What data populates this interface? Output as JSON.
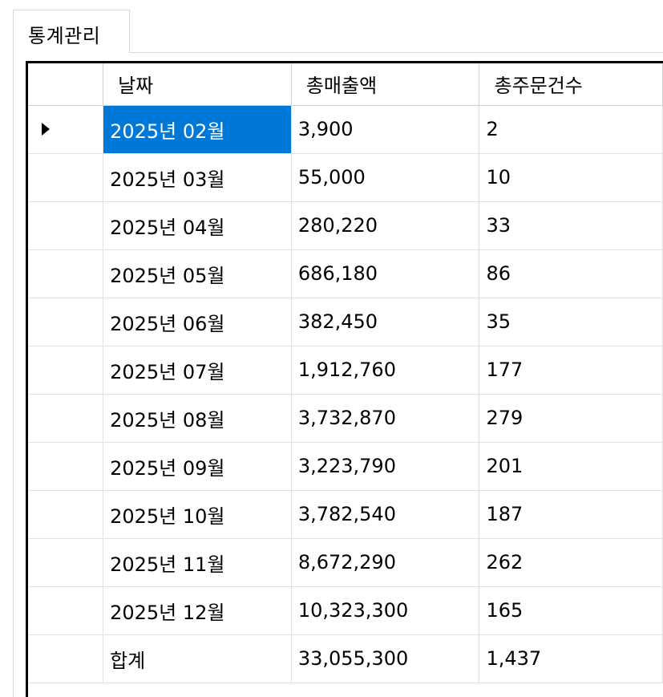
{
  "tab": {
    "label": "통계관리"
  },
  "grid": {
    "columns": [
      "날짜",
      "총매출액",
      "총주문건수"
    ],
    "rows": [
      {
        "date": "2025년 02월",
        "sales": "3,900",
        "orders": "2"
      },
      {
        "date": "2025년 03월",
        "sales": "55,000",
        "orders": "10"
      },
      {
        "date": "2025년 04월",
        "sales": "280,220",
        "orders": "33"
      },
      {
        "date": "2025년 05월",
        "sales": "686,180",
        "orders": "86"
      },
      {
        "date": "2025년 06월",
        "sales": "382,450",
        "orders": "35"
      },
      {
        "date": "2025년 07월",
        "sales": "1,912,760",
        "orders": "177"
      },
      {
        "date": "2025년 08월",
        "sales": "3,732,870",
        "orders": "279"
      },
      {
        "date": "2025년 09월",
        "sales": "3,223,790",
        "orders": "201"
      },
      {
        "date": "2025년 10월",
        "sales": "3,782,540",
        "orders": "187"
      },
      {
        "date": "2025년 11월",
        "sales": "8,672,290",
        "orders": "262"
      },
      {
        "date": "2025년 12월",
        "sales": "10,323,300",
        "orders": "165"
      },
      {
        "date": "합계",
        "sales": "33,055,300",
        "orders": "1,437"
      }
    ],
    "selected_row": 0,
    "selected_color": "#0078d7",
    "current_row_icon": "current-row-arrow-icon"
  }
}
